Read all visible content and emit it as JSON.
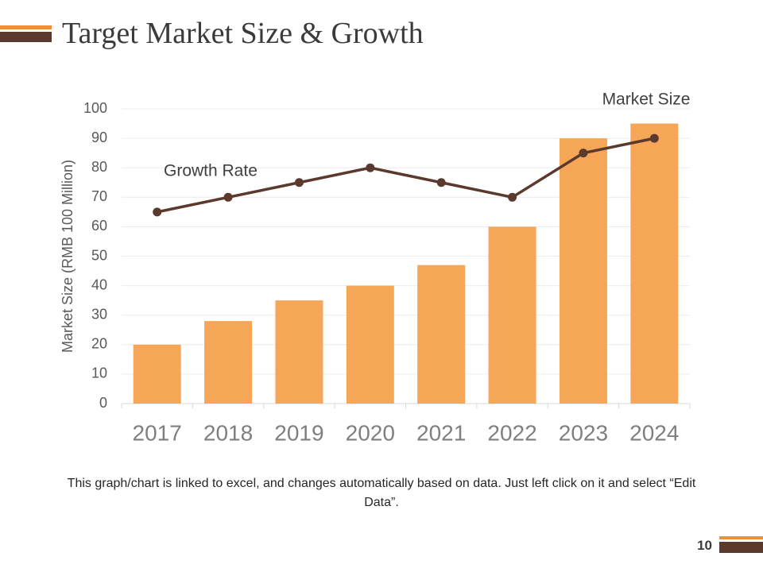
{
  "page": {
    "title": "Target Market Size & Growth",
    "note": "This graph/chart is linked to excel, and changes automatically based on data. Just left click on it and select “Edit Data”.",
    "page_number": "10"
  },
  "chart_data": {
    "type": "combo",
    "y_label": "Market Size (RMB 100 Million)",
    "categories": [
      "2017",
      "2018",
      "2019",
      "2020",
      "2021",
      "2022",
      "2023",
      "2024"
    ],
    "series": [
      {
        "name": "Market Size",
        "type": "bar",
        "color": "#f5a657",
        "values": [
          20,
          28,
          35,
          40,
          47,
          60,
          90,
          95
        ]
      },
      {
        "name": "Growth Rate",
        "type": "line",
        "color": "#5b3a2d",
        "values": [
          65,
          70,
          75,
          80,
          75,
          70,
          85,
          90
        ]
      }
    ],
    "ylim": [
      0,
      100
    ],
    "yticks": [
      0,
      10,
      20,
      30,
      40,
      50,
      60,
      70,
      80,
      90,
      100
    ],
    "grid": true
  }
}
